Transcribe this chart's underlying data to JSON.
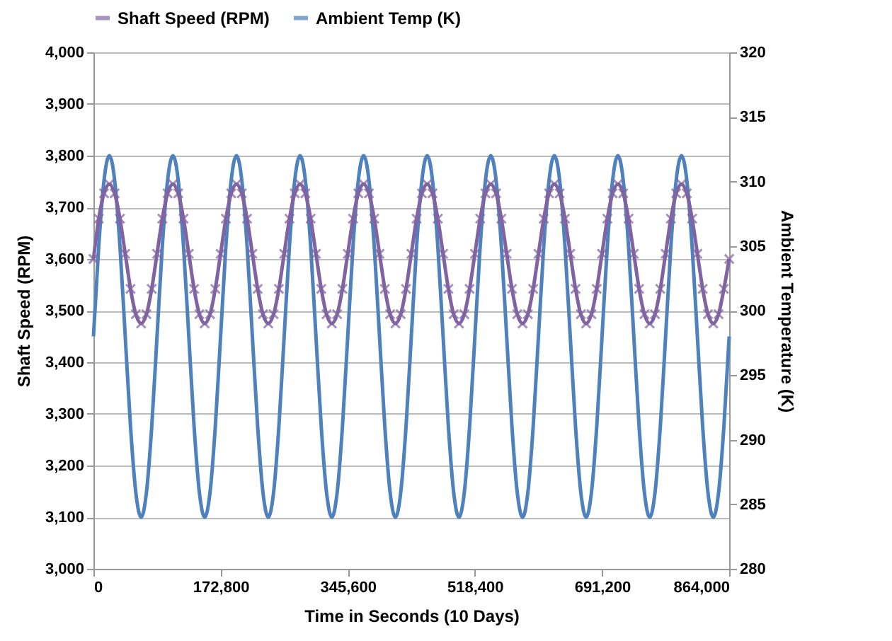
{
  "chart_data": {
    "type": "line",
    "xlabel": "Time in Seconds (10 Days)",
    "ylabel": "Shaft Speed (RPM)",
    "y2label": "Ambient Temperature (K)",
    "x": [
      0,
      7200,
      14400,
      21600,
      28800,
      36000,
      43200,
      50400,
      57600,
      64800,
      72000,
      79200,
      86400,
      93600,
      100800,
      108000,
      115200,
      122400,
      129600,
      136800,
      144000,
      151200,
      158400,
      165600,
      172800,
      180000,
      187200,
      194400,
      201600,
      208800,
      216000,
      223200,
      230400,
      237600,
      244800,
      252000,
      259200,
      266400,
      273600,
      280800,
      288000,
      295200,
      302400,
      309600,
      316800,
      324000,
      331200,
      338400,
      345600,
      352800,
      360000,
      367200,
      374400,
      381600,
      388800,
      396000,
      403200,
      410400,
      417600,
      424800,
      432000,
      439200,
      446400,
      453600,
      460800,
      468000,
      475200,
      482400,
      489600,
      496800,
      504000,
      511200,
      518400,
      525600,
      532800,
      540000,
      547200,
      554400,
      561600,
      568800,
      576000,
      583200,
      590400,
      597600,
      604800,
      612000,
      619200,
      626400,
      633600,
      640800,
      648000,
      655200,
      662400,
      669600,
      676800,
      684000,
      691200,
      698400,
      705600,
      712800,
      720000,
      727200,
      734400,
      741600,
      748800,
      756000,
      763200,
      770400,
      777600,
      784800,
      792000,
      799200,
      806400,
      813600,
      820800,
      828000,
      835200,
      842400,
      849600,
      856800,
      864000
    ],
    "series": [
      {
        "name": "Shaft Speed (RPM)",
        "color": "#8064a2",
        "marker": "cross",
        "values": [
          3600,
          3678,
          3727,
          3745,
          3727,
          3678,
          3610,
          3542,
          3493,
          3475,
          3493,
          3542,
          3610,
          3678,
          3727,
          3745,
          3727,
          3678,
          3610,
          3542,
          3493,
          3475,
          3493,
          3542,
          3610,
          3678,
          3727,
          3745,
          3727,
          3678,
          3610,
          3542,
          3493,
          3475,
          3493,
          3542,
          3610,
          3678,
          3727,
          3745,
          3727,
          3678,
          3610,
          3542,
          3493,
          3475,
          3493,
          3542,
          3610,
          3678,
          3727,
          3745,
          3727,
          3678,
          3610,
          3542,
          3493,
          3475,
          3493,
          3542,
          3610,
          3678,
          3727,
          3745,
          3727,
          3678,
          3610,
          3542,
          3493,
          3475,
          3493,
          3542,
          3610,
          3678,
          3727,
          3745,
          3727,
          3678,
          3610,
          3542,
          3493,
          3475,
          3493,
          3542,
          3610,
          3678,
          3727,
          3745,
          3727,
          3678,
          3610,
          3542,
          3493,
          3475,
          3493,
          3542,
          3610,
          3678,
          3727,
          3745,
          3727,
          3678,
          3610,
          3542,
          3493,
          3475,
          3493,
          3542,
          3610,
          3678,
          3727,
          3745,
          3727,
          3678,
          3610,
          3542,
          3493,
          3475,
          3493,
          3542,
          3600
        ]
      },
      {
        "name": "Ambient Temp (K)",
        "color": "#4f81bd",
        "axis": "y2",
        "values": [
          298,
          305,
          310.1,
          312,
          310.1,
          305,
          298,
          291,
          285.9,
          284,
          285.9,
          291,
          298,
          305,
          310.1,
          312,
          310.1,
          305,
          298,
          291,
          285.9,
          284,
          285.9,
          291,
          298,
          305,
          310.1,
          312,
          310.1,
          305,
          298,
          291,
          285.9,
          284,
          285.9,
          291,
          298,
          305,
          310.1,
          312,
          310.1,
          305,
          298,
          291,
          285.9,
          284,
          285.9,
          291,
          298,
          305,
          310.1,
          312,
          310.1,
          305,
          298,
          291,
          285.9,
          284,
          285.9,
          291,
          298,
          305,
          310.1,
          312,
          310.1,
          305,
          298,
          291,
          285.9,
          284,
          285.9,
          291,
          298,
          305,
          310.1,
          312,
          310.1,
          305,
          298,
          291,
          285.9,
          284,
          285.9,
          291,
          298,
          305,
          310.1,
          312,
          310.1,
          305,
          298,
          291,
          285.9,
          284,
          285.9,
          291,
          298,
          305,
          310.1,
          312,
          310.1,
          305,
          298,
          291,
          285.9,
          284,
          285.9,
          291,
          298,
          305,
          310.1,
          312,
          310.1,
          305,
          298,
          291,
          285.9,
          284,
          285.9,
          291,
          298
        ]
      }
    ],
    "xlim": [
      0,
      864000
    ],
    "xticks": [
      0,
      {
        "value": 172800,
        "label": "172,800"
      },
      {
        "value": 345600,
        "label": "345,600"
      },
      {
        "value": 518400,
        "label": "518,400"
      },
      {
        "value": 691200,
        "label": "691,200"
      },
      {
        "value": 864000,
        "label": "864,000"
      }
    ],
    "ylim": [
      3000,
      4000
    ],
    "yticks": [
      {
        "value": 3000,
        "label": "3,000"
      },
      {
        "value": 3100,
        "label": "3,100"
      },
      {
        "value": 3200,
        "label": "3,200"
      },
      {
        "value": 3300,
        "label": "3,300"
      },
      {
        "value": 3400,
        "label": "3,400"
      },
      {
        "value": 3500,
        "label": "3,500"
      },
      {
        "value": 3600,
        "label": "3,600"
      },
      {
        "value": 3700,
        "label": "3,700"
      },
      {
        "value": 3800,
        "label": "3,800"
      },
      {
        "value": 3900,
        "label": "3,900"
      },
      {
        "value": 4000,
        "label": "4,000"
      }
    ],
    "y2lim": [
      280,
      320
    ],
    "y2ticks": [
      280,
      285,
      290,
      295,
      300,
      305,
      310,
      315,
      320
    ],
    "grid": "y",
    "legend": "top"
  }
}
